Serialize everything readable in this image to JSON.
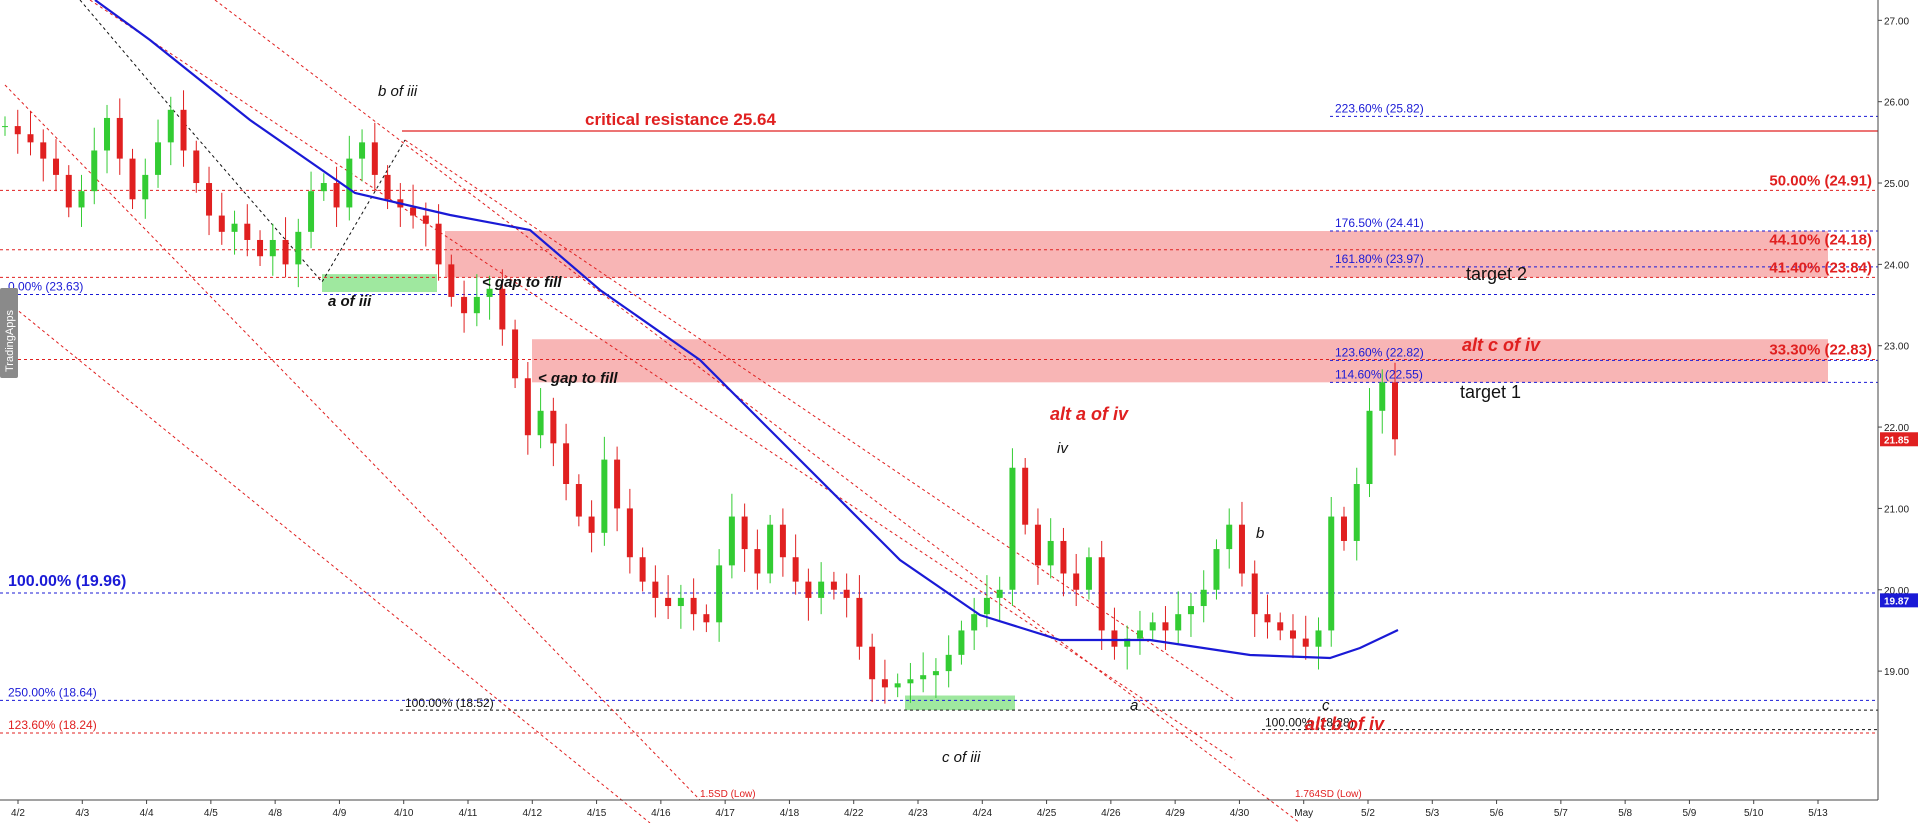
{
  "chart_data": {
    "type": "candlestick",
    "watermark": "TradingApps",
    "price_axis": {
      "ticks": [
        "19.00",
        "20.00",
        "21.00",
        "22.00",
        "23.00",
        "24.00",
        "25.00",
        "26.00",
        "27.00"
      ],
      "tick_values": [
        19,
        20,
        21,
        22,
        23,
        24,
        25,
        26,
        27
      ],
      "ylim": [
        17.6,
        27.25
      ]
    },
    "date_axis": {
      "ticks": [
        "4/2",
        "4/3",
        "4/4",
        "4/5",
        "4/8",
        "4/9",
        "4/10",
        "4/11",
        "4/12",
        "4/15",
        "4/16",
        "4/17",
        "4/18",
        "4/22",
        "4/23",
        "4/24",
        "4/25",
        "4/26",
        "4/29",
        "4/30",
        "May",
        "5/2",
        "5/3",
        "5/6",
        "5/7",
        "5/8",
        "5/9",
        "5/10",
        "5/13"
      ]
    },
    "current_price": {
      "value": 21.85,
      "label": "21.85",
      "color": "#e02020"
    },
    "moving_average_last": {
      "value": 19.87,
      "label": "19.87",
      "color": "#1a1ad6"
    },
    "levels": [
      {
        "label": "223.60% (25.82)",
        "value": 25.82,
        "color": "#1a1ad6",
        "style": "blue"
      },
      {
        "label": "176.50% (24.41)",
        "value": 24.41,
        "color": "#1a1ad6",
        "style": "blue"
      },
      {
        "label": "161.80% (23.97)",
        "value": 23.97,
        "color": "#1a1ad6",
        "style": "blue"
      },
      {
        "label": "123.60% (22.82)",
        "value": 22.82,
        "color": "#1a1ad6",
        "style": "blue"
      },
      {
        "label": "114.60% (22.55)",
        "value": 22.55,
        "color": "#1a1ad6",
        "style": "blue"
      },
      {
        "label": "50.00% (24.91)",
        "value": 24.91,
        "color": "#e02020",
        "style": "red"
      },
      {
        "label": "44.10% (24.18)",
        "value": 24.18,
        "color": "#e02020",
        "style": "red"
      },
      {
        "label": "41.40% (23.84)",
        "value": 23.84,
        "color": "#e02020",
        "style": "red"
      },
      {
        "label": "33.30% (22.83)",
        "value": 22.83,
        "color": "#e02020",
        "style": "red"
      },
      {
        "label": "0.00% (23.63)",
        "value": 23.63,
        "color": "#1a1ad6",
        "style": "left-blue"
      },
      {
        "label": "100.00% (19.96)",
        "value": 19.96,
        "color": "#1a1ad6",
        "style": "left-blue-big"
      },
      {
        "label": "250.00% (18.64)",
        "value": 18.64,
        "color": "#1a1ad6",
        "style": "left-blue"
      },
      {
        "label": "123.60% (18.24)",
        "value": 18.24,
        "color": "#e02020",
        "style": "left-red"
      },
      {
        "label": "100.00% (18.52)",
        "value": 18.52,
        "color": "#111111",
        "style": "black"
      },
      {
        "label": "100.00% (18.28)",
        "value": 18.28,
        "color": "#111111",
        "style": "black"
      }
    ],
    "critical_resistance": {
      "label": "critical resistance 25.64",
      "value": 25.64
    },
    "zones": [
      {
        "name": "upper-gap-zone",
        "low": 23.84,
        "high": 24.41
      },
      {
        "name": "lower-gap-zone",
        "low": 22.55,
        "high": 23.08
      }
    ],
    "annotations": {
      "b_of_iii": "b of iii",
      "a_of_iii": "a of iii",
      "c_of_iii": "c of iii",
      "gap_upper": "< gap to fill",
      "gap_lower": "< gap to fill",
      "iv": "iv",
      "a": "a",
      "b": "b",
      "c": "c",
      "alt_a_of_iv": "alt a of iv",
      "alt_b_of_iv": "alt b of iv",
      "alt_c_of_iv": "alt c of iv",
      "target_1": "target 1",
      "target_2": "target 2",
      "sd_1_5": "1.5SD (Low)",
      "sd_1_764": "1.764SD (Low)"
    },
    "close_series": [
      25.7,
      25.6,
      25.5,
      25.3,
      25.1,
      24.7,
      24.9,
      25.4,
      25.8,
      25.3,
      24.8,
      25.1,
      25.5,
      25.9,
      25.4,
      25.0,
      24.6,
      24.4,
      24.5,
      24.3,
      24.1,
      24.3,
      24.0,
      24.4,
      24.9,
      25.0,
      24.7,
      25.3,
      25.5,
      25.1,
      24.8,
      24.7,
      24.6,
      24.5,
      24.0,
      23.6,
      23.4,
      23.6,
      23.7,
      23.2,
      22.6,
      21.9,
      22.2,
      21.8,
      21.3,
      20.9,
      20.7,
      21.6,
      21.0,
      20.4,
      20.1,
      19.9,
      19.8,
      19.9,
      19.7,
      19.6,
      20.3,
      20.9,
      20.5,
      20.2,
      20.8,
      20.4,
      20.1,
      19.9,
      20.1,
      20.0,
      19.9,
      19.3,
      18.9,
      18.8,
      18.85,
      18.9,
      18.95,
      19.0,
      19.2,
      19.5,
      19.7,
      19.9,
      20.0,
      21.5,
      20.8,
      20.3,
      20.6,
      20.2,
      20.0,
      20.4,
      19.5,
      19.3,
      19.4,
      19.5,
      19.6,
      19.5,
      19.7,
      19.8,
      20.0,
      20.5,
      20.8,
      20.2,
      19.7,
      19.6,
      19.5,
      19.4,
      19.3,
      19.5,
      20.9,
      20.6,
      21.3,
      22.2,
      22.55,
      21.85
    ]
  }
}
